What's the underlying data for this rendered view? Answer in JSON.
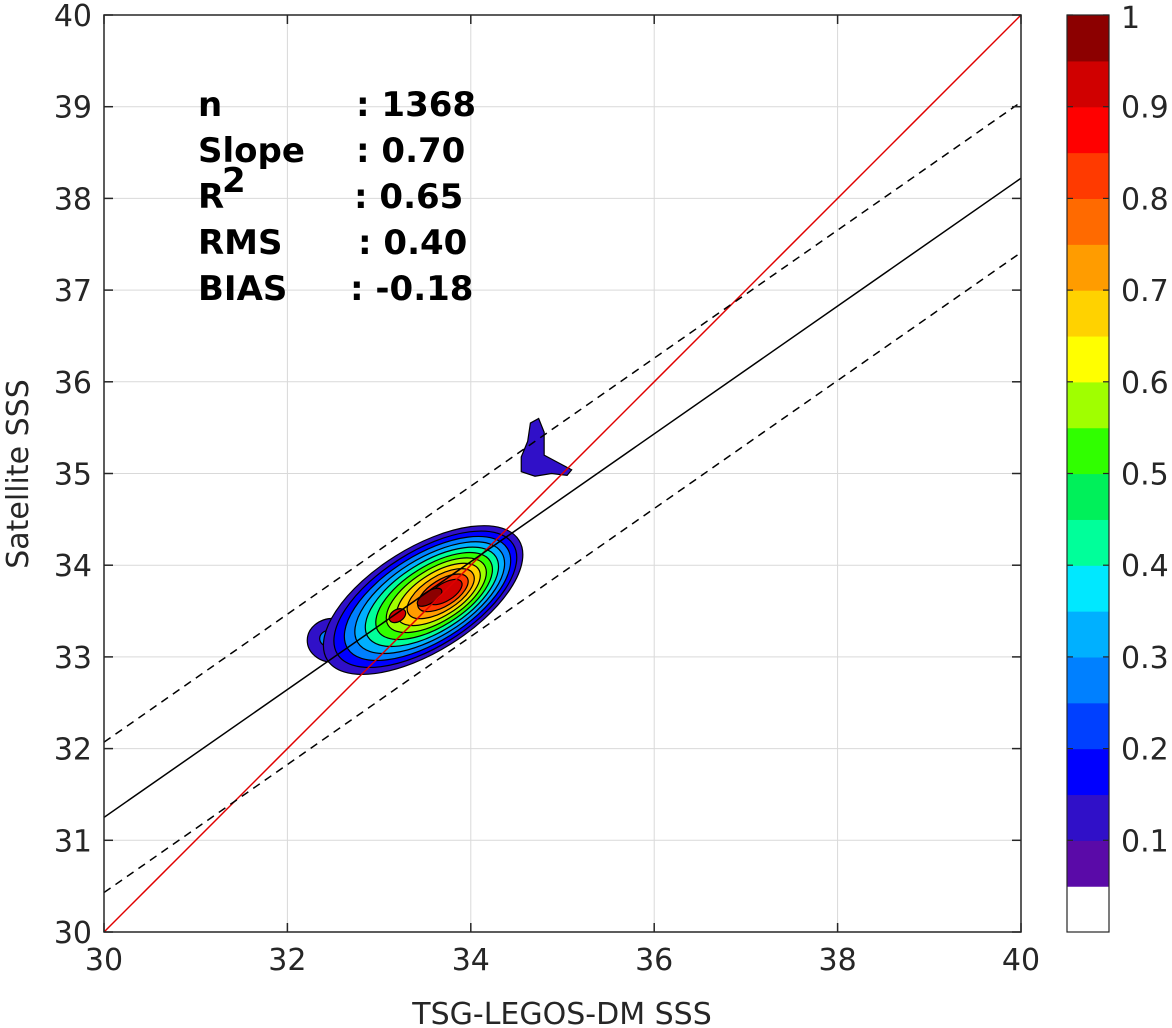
{
  "chart_data": {
    "type": "heatmap",
    "description_kind": "density contour scatter comparison",
    "xlabel": "TSG-LEGOS-DM SSS",
    "ylabel": "Satellite SSS",
    "xlim": [
      30,
      40
    ],
    "ylim": [
      30,
      40
    ],
    "xticks": [
      "30",
      "32",
      "34",
      "36",
      "38",
      "40"
    ],
    "yticks": [
      "30",
      "31",
      "32",
      "33",
      "34",
      "35",
      "36",
      "37",
      "38",
      "39",
      "40"
    ],
    "grid": true,
    "stats": [
      {
        "label": "n",
        "value": ": 1368"
      },
      {
        "label": "Slope",
        "value": ": 0.70"
      },
      {
        "label": "R",
        "sup": "2",
        "value": ": 0.65"
      },
      {
        "label": "RMS",
        "value": ": 0.40"
      },
      {
        "label": "BIAS",
        "value": ": -0.18"
      }
    ],
    "lines": [
      {
        "name": "one-to-one",
        "color": "#e00000",
        "dash": "solid",
        "x": [
          30,
          40
        ],
        "y": [
          30,
          40
        ]
      },
      {
        "name": "regression",
        "color": "#000000",
        "dash": "solid",
        "x": [
          30,
          40
        ],
        "y": [
          31.25,
          38.22
        ]
      },
      {
        "name": "regression-plus",
        "color": "#000000",
        "dash": "dashed",
        "x": [
          30,
          40
        ],
        "y": [
          32.07,
          39.05
        ]
      },
      {
        "name": "regression-minus",
        "color": "#000000",
        "dash": "dashed",
        "x": [
          30,
          40
        ],
        "y": [
          30.43,
          37.41
        ]
      }
    ],
    "density_peaks": [
      {
        "x": 33.55,
        "y": 33.65,
        "level": 1.0
      },
      {
        "x": 33.2,
        "y": 33.45,
        "level": 0.9
      },
      {
        "x": 32.45,
        "y": 33.2,
        "level": 0.25
      },
      {
        "x": 34.7,
        "y": 35.15,
        "level": 0.1
      }
    ],
    "colorbar": {
      "ticks": [
        "0.1",
        "0.2",
        "0.3",
        "0.4",
        "0.5",
        "0.6",
        "0.7",
        "0.8",
        "0.9",
        "1"
      ],
      "range": [
        0,
        1
      ],
      "colors": [
        "#ffffff",
        "#5a0aa8",
        "#3010c8",
        "#0000ff",
        "#0040ff",
        "#0080ff",
        "#00b0ff",
        "#00e8ff",
        "#00ff9a",
        "#00f05a",
        "#30ff00",
        "#a0ff00",
        "#ffff00",
        "#ffd200",
        "#ff9c00",
        "#ff6a00",
        "#ff3a00",
        "#ff0000",
        "#d00000",
        "#8c0000"
      ]
    }
  }
}
